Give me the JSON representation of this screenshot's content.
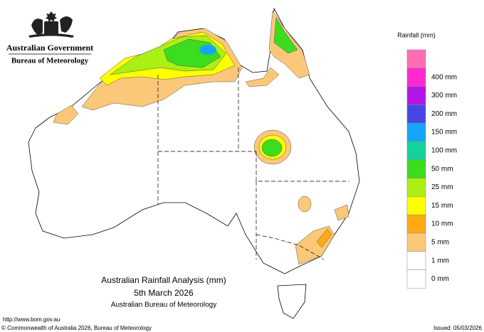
{
  "header": {
    "title": "Australian Government",
    "subtitle": "Bureau of Meteorology"
  },
  "legend": {
    "title": "Rainfall (mm)",
    "top_color": "#ff6eb4",
    "items": [
      {
        "label": "400 mm",
        "color": "#ff2bd0"
      },
      {
        "label": "300 mm",
        "color": "#b414e6"
      },
      {
        "label": "200 mm",
        "color": "#4646e6"
      },
      {
        "label": "150 mm",
        "color": "#14a5ff"
      },
      {
        "label": "100 mm",
        "color": "#14d29b"
      },
      {
        "label": "50 mm",
        "color": "#3cdc1e"
      },
      {
        "label": "25 mm",
        "color": "#aaf014"
      },
      {
        "label": "15 mm",
        "color": "#ffff00"
      },
      {
        "label": "10 mm",
        "color": "#ffaa14"
      },
      {
        "label": "5 mm",
        "color": "#fac878"
      },
      {
        "label": "1 mm",
        "color": "#ffffff"
      },
      {
        "label": "0 mm",
        "color": "#ffffff"
      }
    ]
  },
  "map_title": {
    "line1": "Australian Rainfall Analysis (mm)",
    "line2": "5th March 2026",
    "line3": "Australian Bureau of Meteorology"
  },
  "footer": {
    "url": "http://www.bom.gov.au",
    "copyright": "© Commonwealth of Australia 2026, Bureau of Meteorology",
    "issued": "Issued: 05/03/2026"
  }
}
